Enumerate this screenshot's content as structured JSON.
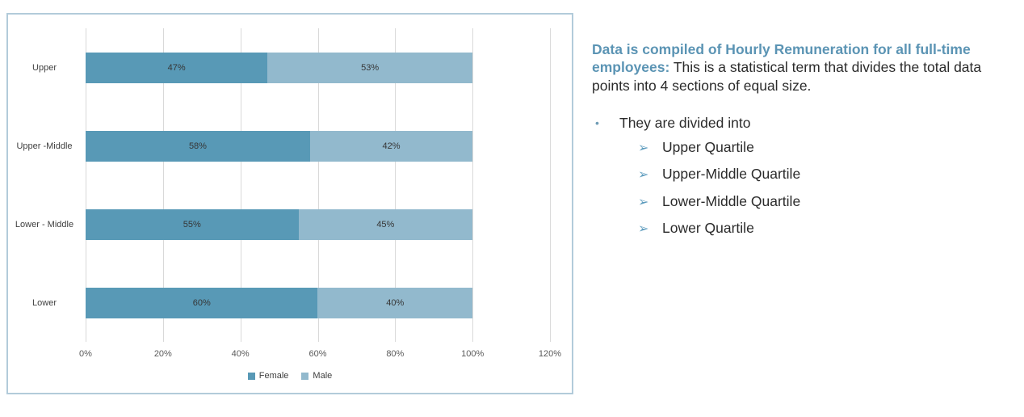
{
  "chart_data": {
    "type": "bar",
    "orientation": "horizontal",
    "stacked": true,
    "title": "",
    "categories": [
      "Upper",
      "Upper -Middle",
      "Lower - Middle",
      "Lower"
    ],
    "series": [
      {
        "name": "Female",
        "color": "#5899b6",
        "values": [
          47,
          58,
          55,
          60
        ]
      },
      {
        "name": "Male",
        "color": "#92b9cd",
        "values": [
          53,
          42,
          45,
          40
        ]
      }
    ],
    "data_label_suffix": "%",
    "value_axis": {
      "tick_labels": [
        "0%",
        "20%",
        "40%",
        "60%",
        "80%",
        "100%",
        "120%"
      ],
      "min": 0,
      "max": 120
    },
    "grid": true,
    "legend_position": "bottom"
  },
  "info": {
    "heading_bold": "Data is compiled of Hourly Remuneration for all full-time employees:",
    "heading_rest": " This is a statistical term that divides the total data points into 4 sections of equal size.",
    "bullet_glyph": "•",
    "bullet_text": "They are divided into",
    "arrow_glyph": "➢",
    "list": [
      "Upper Quartile",
      "Upper-Middle Quartile",
      "Lower-Middle Quartile",
      "Lower Quartile"
    ]
  },
  "colors": {
    "accent_heading": "#5b94b4",
    "female_bar": "#5899b6",
    "male_bar": "#92b9cd",
    "chart_border": "#b2cbda",
    "gridline": "#d9d9d9"
  }
}
